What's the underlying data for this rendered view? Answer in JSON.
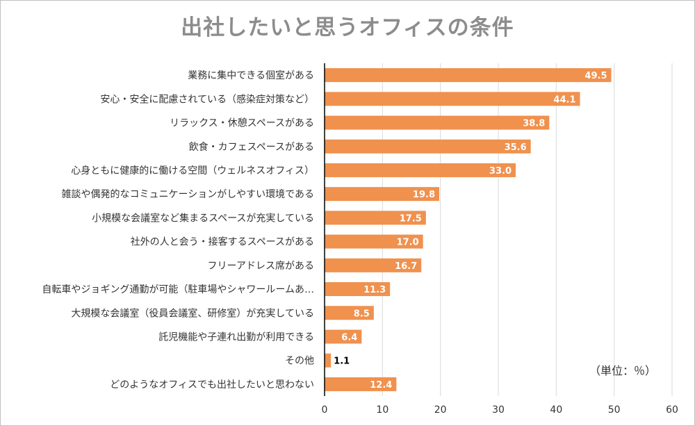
{
  "chart_data": {
    "type": "bar",
    "orientation": "horizontal",
    "title": "出社したいと思うオフィスの条件",
    "unit_note": "（単位：％）",
    "categories": [
      "業務に集中できる個室がある",
      "安心・安全に配慮されている（感染症対策など）",
      "リラックス・休憩スペースがある",
      "飲食・カフェスペースがある",
      "心身ともに健康的に働ける空間（ウェルネスオフィス）",
      "雑談や偶発的なコミュニケーションがしやすい環境である",
      "小規模な会議室など集まるスペースが充実している",
      "社外の人と会う・接客するスペースがある",
      "フリーアドレス席がある",
      "自転車やジョギング通勤が可能（駐車場やシャワールームあ…",
      "大規模な会議室（役員会議室、研修室）が充実している",
      "託児機能や子連れ出勤が利用できる",
      "その他",
      "どのようなオフィスでも出社したいと思わない"
    ],
    "values": [
      49.5,
      44.1,
      38.8,
      35.6,
      33.0,
      19.8,
      17.5,
      17.0,
      16.7,
      11.3,
      8.5,
      6.4,
      1.1,
      12.4
    ],
    "value_labels": [
      "49.5",
      "44.1",
      "38.8",
      "35.6",
      "33.0",
      "19.8",
      "17.5",
      "17.0",
      "16.7",
      "11.3",
      "8.5",
      "6.4",
      "1.1",
      "12.4"
    ],
    "xlim": [
      0,
      60
    ],
    "xticks": [
      "0",
      "10",
      "20",
      "30",
      "40",
      "50",
      "60"
    ],
    "xlabel": "",
    "ylabel": "",
    "grid": "vertical",
    "legend": "none",
    "colors": {
      "bar": "#f0914e",
      "grid": "#d9d9d9",
      "axis": "#000000",
      "title": "#8c8c8c",
      "label_inside": "#ffffff",
      "label_outside": "#000000"
    }
  }
}
